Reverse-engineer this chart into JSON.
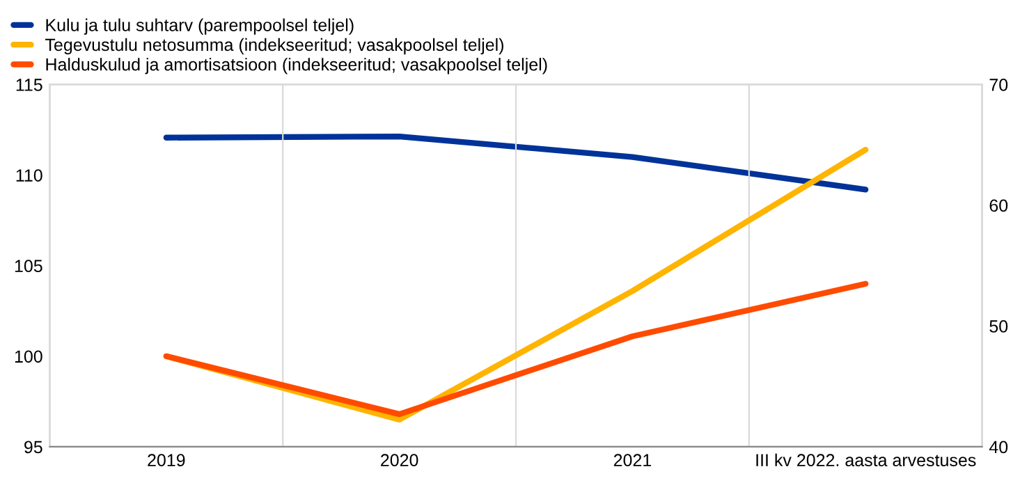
{
  "chart_data": {
    "type": "line",
    "categories": [
      "2019",
      "2020",
      "2021",
      "III kv 2022. aasta arvestuses"
    ],
    "series": [
      {
        "name": "Kulu ja tulu suhtarv (parempoolsel teljel)",
        "color": "#003299",
        "axis": "y2",
        "values": [
          65.6,
          65.7,
          64.0,
          61.3
        ]
      },
      {
        "name": "Tegevustulu netosumma (indekseeritud; vasakpoolsel teljel)",
        "color": "#ffb400",
        "values": [
          100,
          96.5,
          103.6,
          111.4
        ]
      },
      {
        "name": "Halduskulud ja amortisatsioon (indekseeritud; vasakpoolsel teljel)",
        "color": "#ff4b00",
        "values": [
          100,
          96.8,
          101.1,
          104.0
        ]
      }
    ],
    "ylim": [
      95,
      115
    ],
    "yticks": [
      95,
      100,
      105,
      110,
      115
    ],
    "y2lim": [
      40,
      70
    ],
    "y2ticks": [
      40,
      50,
      60,
      70
    ],
    "grid": "x",
    "legend": "top left",
    "marker": "none",
    "line_style": "solid"
  }
}
